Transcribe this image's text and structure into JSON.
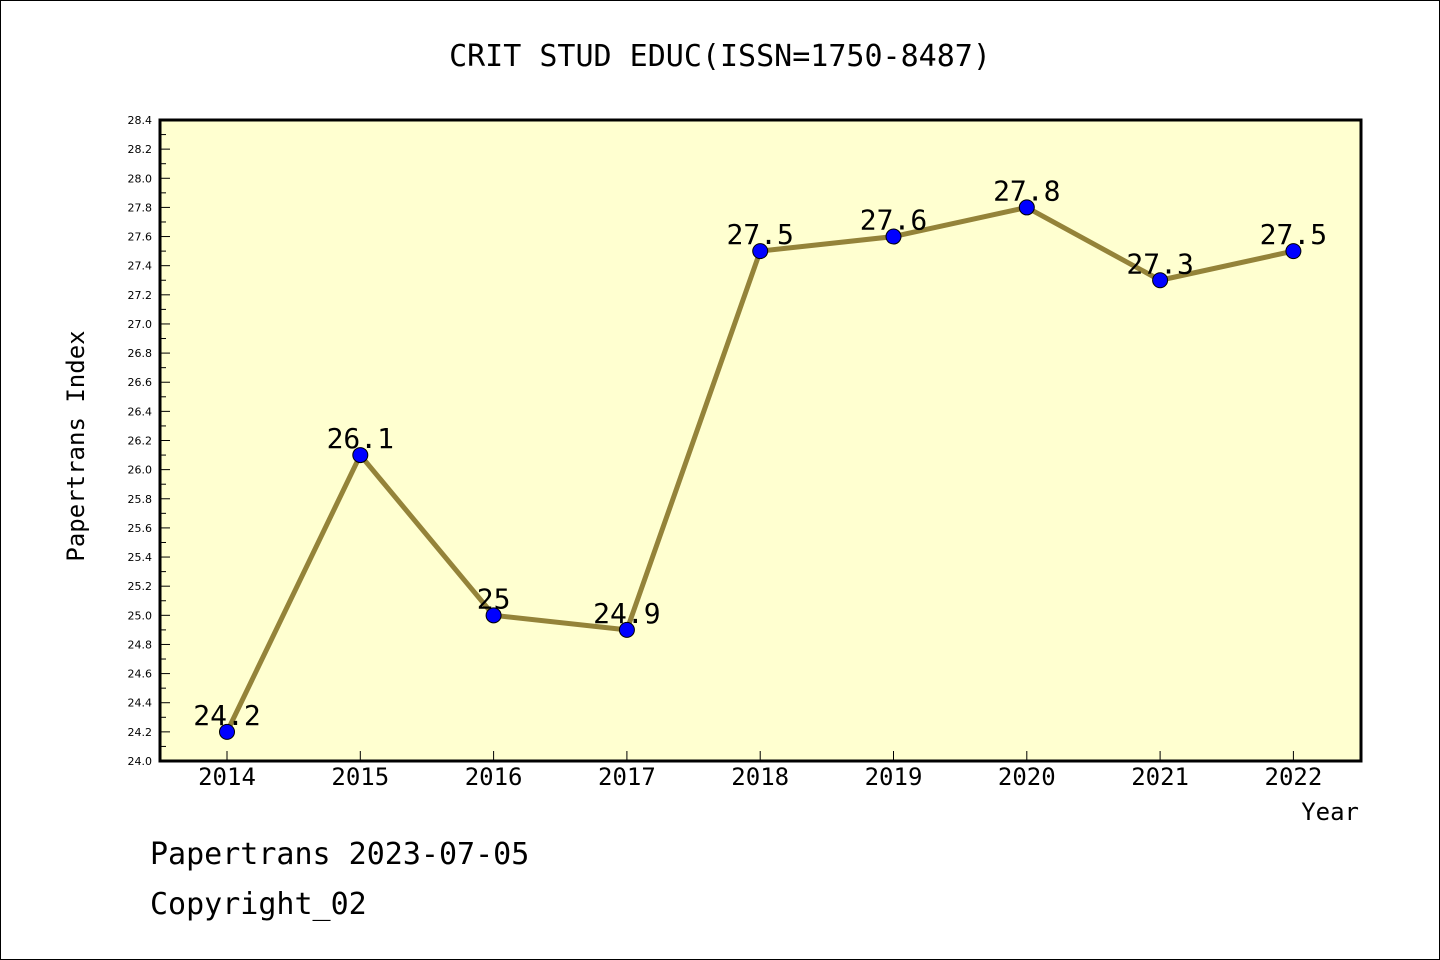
{
  "chart_data": {
    "type": "line",
    "title": "CRIT STUD EDUC(ISSN=1750-8487)",
    "xlabel": "Year",
    "ylabel": "Papertrans Index",
    "categories": [
      "2014",
      "2015",
      "2016",
      "2017",
      "2018",
      "2019",
      "2020",
      "2021",
      "2022"
    ],
    "series": [
      {
        "values": [
          24.2,
          26.1,
          25,
          24.9,
          27.5,
          27.6,
          27.8,
          27.3,
          27.5
        ]
      }
    ],
    "data_labels": [
      "24.2",
      "26.1",
      "25",
      "24.9",
      "27.5",
      "27.6",
      "27.8",
      "27.3",
      "27.5"
    ],
    "ylim": [
      24.0,
      28.4
    ],
    "y_ticks": [
      "24.0",
      "24.2",
      "24.4",
      "24.6",
      "24.8",
      "25.0",
      "25.2",
      "25.4",
      "25.6",
      "25.8",
      "26.0",
      "26.2",
      "26.4",
      "26.6",
      "26.8",
      "27.0",
      "27.2",
      "27.4",
      "27.6",
      "27.8",
      "28.0",
      "28.2",
      "28.4"
    ],
    "grid": false,
    "colors": {
      "plot_background": "#ffffd0",
      "line": "#948339",
      "marker": "#0000ff"
    }
  },
  "footer": {
    "line1": "Papertrans 2023-07-05",
    "line2": "Copyright_02"
  }
}
